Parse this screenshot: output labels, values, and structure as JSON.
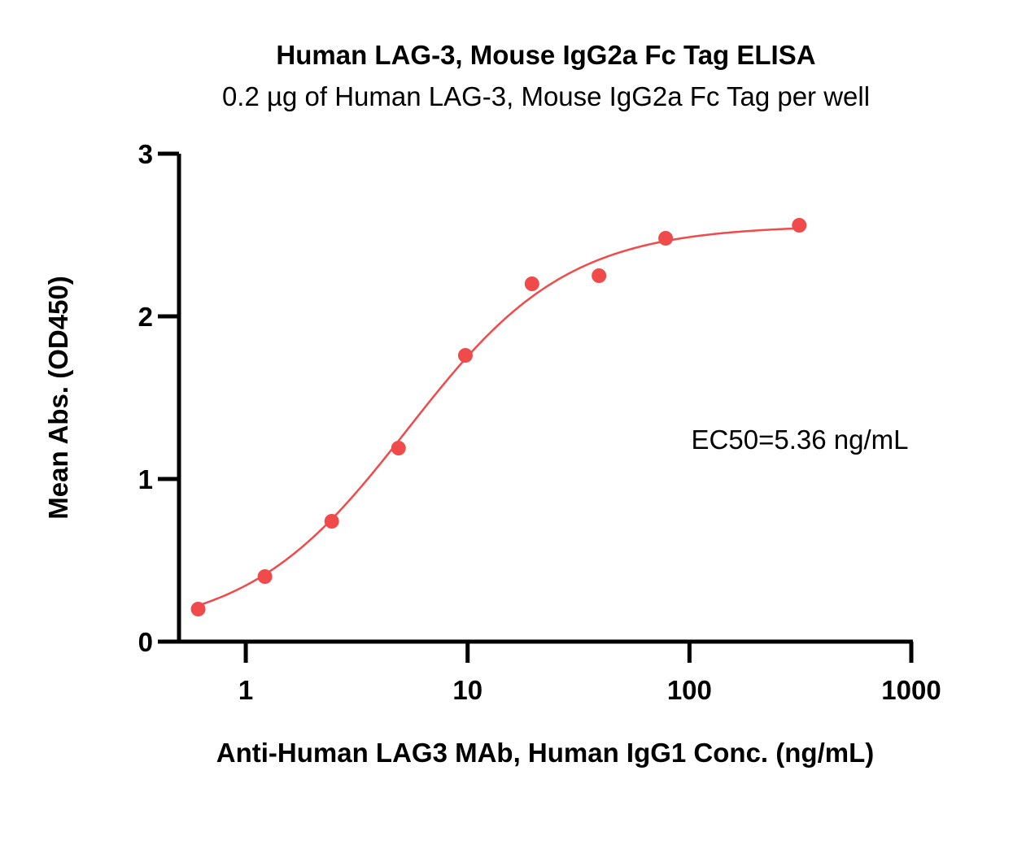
{
  "chart_data": {
    "type": "scatter",
    "title": "Human LAG-3, Mouse IgG2a Fc Tag ELISA",
    "subtitle": "0.2 µg of Human LAG-3, Mouse IgG2a Fc Tag per well",
    "xlabel": "Anti-Human LAG3 MAb, Human IgG1 Conc. (ng/mL)",
    "ylabel": "Mean Abs. (OD450)",
    "xscale": "log",
    "xlim": [
      0.5,
      1000
    ],
    "ylim": [
      0,
      3
    ],
    "xticks": [
      1,
      10,
      100,
      1000
    ],
    "xtick_labels": [
      "1",
      "10",
      "100",
      "1000"
    ],
    "yticks": [
      0,
      1,
      2,
      3
    ],
    "ytick_labels": [
      "0",
      "1",
      "2",
      "3"
    ],
    "grid": false,
    "legend": "none",
    "series": [
      {
        "color": "#f04a4a",
        "x": [
          0.61,
          1.22,
          2.44,
          4.88,
          9.77,
          19.5,
          39.1,
          78.1,
          312.5
        ],
        "y": [
          0.2,
          0.4,
          0.74,
          1.19,
          1.76,
          2.2,
          2.25,
          2.48,
          2.56
        ],
        "fit": {
          "model": "4PL",
          "bottom": 0.05,
          "top": 2.56,
          "ec50": 5.36,
          "hill": 1.2
        }
      }
    ],
    "annotations": [
      {
        "text": "EC50=5.36 ng/mL"
      }
    ]
  }
}
